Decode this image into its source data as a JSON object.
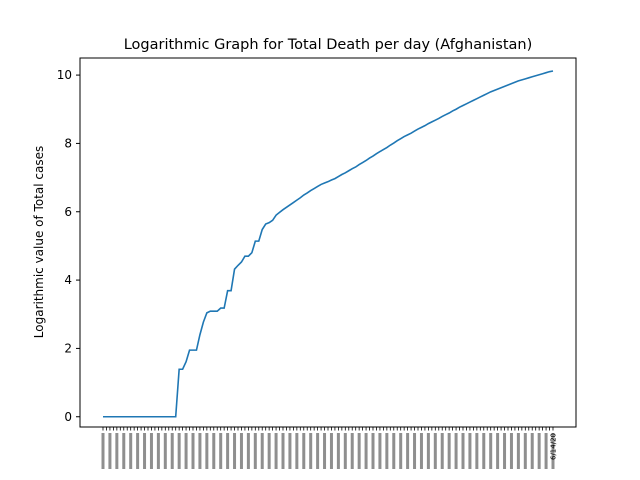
{
  "chart_data": {
    "type": "line",
    "title": "Logarithmic Graph for Total Death per day (Afghanistan)",
    "xlabel": "",
    "ylabel": "Logarithmic value of Total cases",
    "ylim": [
      -0.3,
      10.5
    ],
    "yticks": [
      0,
      2,
      4,
      6,
      8,
      10
    ],
    "grid": false,
    "line_color": "#1f77b4",
    "last_tick_label": "6/14/20",
    "series": [
      {
        "values": [
          0,
          0,
          0,
          0,
          0,
          0,
          0,
          0,
          0,
          0,
          0,
          0,
          0,
          0,
          0,
          0,
          0,
          0,
          0,
          0,
          0,
          0,
          1.39,
          1.39,
          1.61,
          1.95,
          1.95,
          1.95,
          2.4,
          2.77,
          3.04,
          3.09,
          3.09,
          3.09,
          3.18,
          3.18,
          3.69,
          3.69,
          4.32,
          4.43,
          4.53,
          4.7,
          4.7,
          4.8,
          5.14,
          5.14,
          5.48,
          5.64,
          5.68,
          5.75,
          5.9,
          5.98,
          6.06,
          6.13,
          6.2,
          6.27,
          6.34,
          6.41,
          6.49,
          6.55,
          6.62,
          6.68,
          6.74,
          6.8,
          6.84,
          6.88,
          6.93,
          6.97,
          7.03,
          7.09,
          7.14,
          7.2,
          7.26,
          7.31,
          7.38,
          7.44,
          7.5,
          7.57,
          7.63,
          7.7,
          7.76,
          7.82,
          7.88,
          7.95,
          8.01,
          8.08,
          8.14,
          8.2,
          8.25,
          8.3,
          8.36,
          8.42,
          8.47,
          8.52,
          8.58,
          8.63,
          8.68,
          8.73,
          8.79,
          8.84,
          8.89,
          8.95,
          9.0,
          9.06,
          9.11,
          9.16,
          9.21,
          9.26,
          9.31,
          9.36,
          9.41,
          9.46,
          9.51,
          9.55,
          9.59,
          9.63,
          9.67,
          9.71,
          9.75,
          9.79,
          9.83,
          9.86,
          9.89,
          9.92,
          9.95,
          9.98,
          10.01,
          10.04,
          10.07,
          10.1,
          10.12
        ]
      }
    ]
  }
}
